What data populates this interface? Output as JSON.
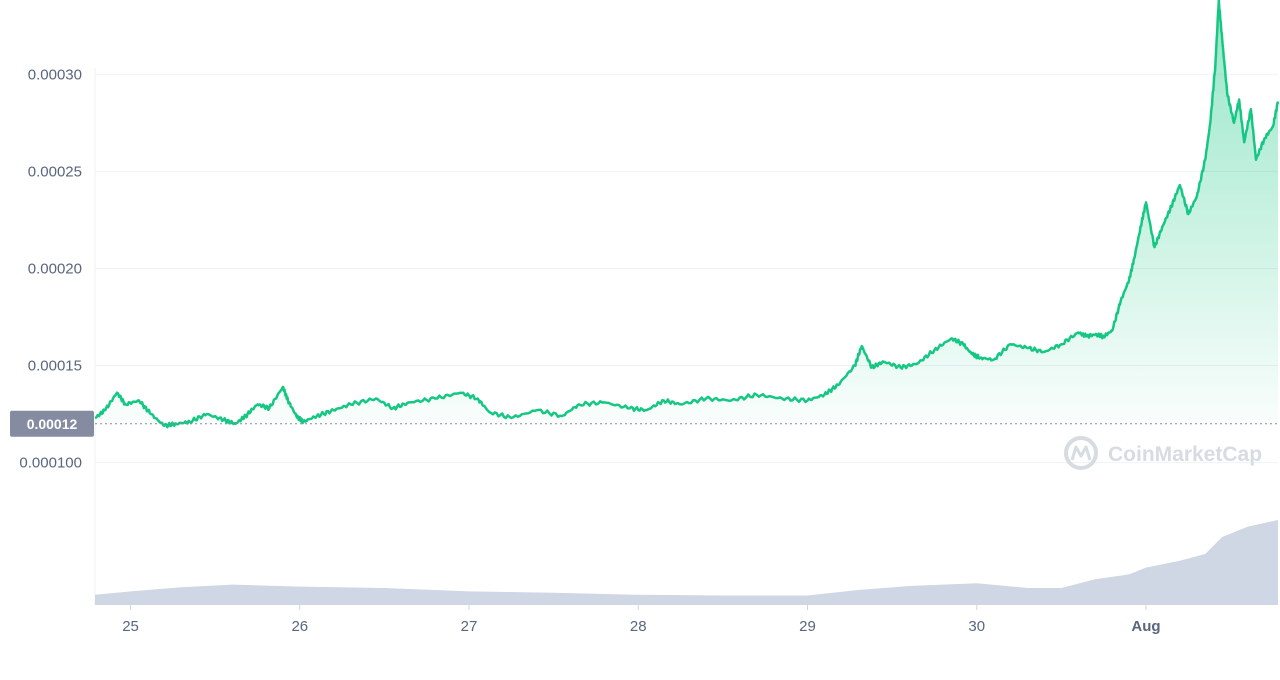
{
  "chart_data": {
    "type": "area",
    "title": "",
    "xlabel": "",
    "ylabel": "",
    "x_tick_labels": [
      "25",
      "26",
      "27",
      "28",
      "29",
      "30",
      "Aug"
    ],
    "y_tick_labels": [
      "0.00030",
      "0.00025",
      "0.00020",
      "0.00015",
      "0.000100"
    ],
    "y_ticks": [
      0.0003,
      0.00025,
      0.0002,
      0.00015,
      0.0001
    ],
    "ylim": [
      9e-05,
      0.00034
    ],
    "xlim": [
      24.79,
      31.78
    ],
    "grid": true,
    "current_price_label": "0.00012",
    "current_price": 0.00012,
    "watermark": "CoinMarketCap",
    "colors": {
      "line": "#16c784",
      "fill": "#16c784",
      "volume": "#cfd6e4",
      "grid": "#eff2f5",
      "badge": "#858ca2"
    },
    "series": [
      {
        "values_x": [
          24.79,
          24.85,
          24.92,
          24.97,
          25.05,
          25.12,
          25.2,
          25.27,
          25.35,
          25.45,
          25.55,
          25.62,
          25.68,
          25.75,
          25.82,
          25.9,
          25.93,
          25.98,
          26.02,
          26.1,
          26.2,
          26.3,
          26.45,
          26.55,
          26.65,
          26.8,
          26.95,
          27.05,
          27.12,
          27.25,
          27.4,
          27.55,
          27.65,
          27.8,
          27.95,
          28.05,
          28.15,
          28.25,
          28.4,
          28.55,
          28.7,
          28.85,
          29.0,
          29.1,
          29.18,
          29.28,
          29.32,
          29.38,
          29.45,
          29.55,
          29.65,
          29.75,
          29.85,
          29.92,
          29.97,
          30.02,
          30.1,
          30.2,
          30.3,
          30.4,
          30.5,
          30.6,
          30.65,
          30.7,
          30.75,
          30.8,
          30.85,
          30.9,
          30.93,
          30.97,
          31.0,
          31.05,
          31.1,
          31.15,
          31.2,
          31.25,
          31.3,
          31.35,
          31.38,
          31.41,
          31.43,
          31.45,
          31.48,
          31.52,
          31.55,
          31.58,
          31.62,
          31.65,
          31.7,
          31.75,
          31.78
        ],
        "values_y": [
          0.000123,
          0.000127,
          0.000136,
          0.00013,
          0.000132,
          0.000125,
          0.000119,
          0.00012,
          0.000121,
          0.000125,
          0.000122,
          0.00012,
          0.000124,
          0.00013,
          0.000128,
          0.000139,
          0.000132,
          0.000124,
          0.000121,
          0.000124,
          0.000127,
          0.00013,
          0.000133,
          0.000128,
          0.000131,
          0.000133,
          0.000136,
          0.000133,
          0.000126,
          0.000123,
          0.000127,
          0.000124,
          0.00013,
          0.000131,
          0.000128,
          0.000127,
          0.000132,
          0.00013,
          0.000133,
          0.000132,
          0.000135,
          0.000133,
          0.000132,
          0.000135,
          0.00014,
          0.00015,
          0.00016,
          0.000149,
          0.000152,
          0.000149,
          0.000151,
          0.000158,
          0.000164,
          0.000161,
          0.000156,
          0.000154,
          0.000153,
          0.000161,
          0.000159,
          0.000157,
          0.000161,
          0.000167,
          0.000165,
          0.000166,
          0.000165,
          0.000168,
          0.000183,
          0.000194,
          0.000205,
          0.000222,
          0.000234,
          0.000211,
          0.000222,
          0.000232,
          0.000243,
          0.000228,
          0.000237,
          0.000256,
          0.000275,
          0.000305,
          0.000338,
          0.000318,
          0.00029,
          0.000275,
          0.000287,
          0.000265,
          0.000282,
          0.000256,
          0.000267,
          0.000273,
          0.000286
        ]
      }
    ],
    "volume": {
      "values_x": [
        24.79,
        25.0,
        25.3,
        25.6,
        26.0,
        26.5,
        27.0,
        27.5,
        28.0,
        28.5,
        29.0,
        29.3,
        29.6,
        30.0,
        30.3,
        30.5,
        30.7,
        30.9,
        31.0,
        31.2,
        31.35,
        31.45,
        31.6,
        31.78
      ],
      "values": [
        1.5,
        2.0,
        2.6,
        3.0,
        2.7,
        2.5,
        2.0,
        1.8,
        1.5,
        1.4,
        1.4,
        2.2,
        2.8,
        3.2,
        2.5,
        2.5,
        3.8,
        4.5,
        5.5,
        6.5,
        7.5,
        10.0,
        11.5,
        12.5
      ]
    }
  }
}
